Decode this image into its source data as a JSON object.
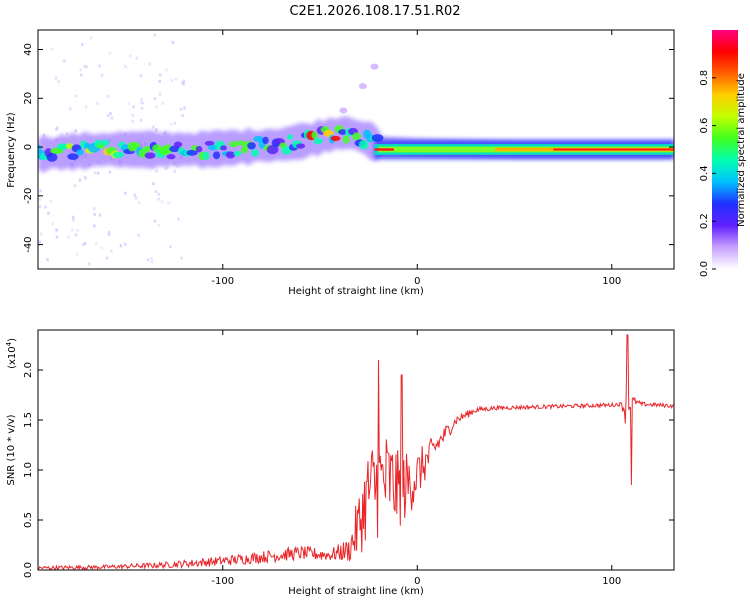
{
  "title": "C2E1.2026.108.17.51.R02",
  "chart_data": [
    {
      "type": "heatmap",
      "xlabel": "Height of straight line (km)",
      "ylabel": "Frequency (Hz)",
      "xlim": [
        -195,
        132
      ],
      "ylim": [
        -50,
        48
      ],
      "xticks": [
        -100,
        0,
        100
      ],
      "xtick_labels": [
        "-100",
        "0",
        "100"
      ],
      "yticks": [
        -40,
        -20,
        0,
        20,
        40
      ],
      "ytick_labels": [
        "-40",
        "-20",
        "0",
        "20",
        "40"
      ],
      "colorbar": {
        "label": "Normalized spectral amplitude",
        "range": [
          0,
          1
        ],
        "ticks": [
          0.0,
          0.2,
          0.4,
          0.6,
          0.8
        ],
        "tick_labels": [
          "0.0",
          "0.2",
          "0.4",
          "0.6",
          "0.8"
        ],
        "colors": [
          "#ffffff",
          "#c8a0ff",
          "#6020ff",
          "#2030ff",
          "#00c0ff",
          "#00ffb0",
          "#40ff20",
          "#c0ff00",
          "#ffd000",
          "#ff6000",
          "#ff0000",
          "#ff0080"
        ]
      },
      "band_center_hz": [
        {
          "x": -195,
          "f": -3
        },
        {
          "x": -180,
          "f": -2
        },
        {
          "x": -160,
          "f": -1
        },
        {
          "x": -130,
          "f": -1
        },
        {
          "x": -110,
          "f": -1
        },
        {
          "x": -90,
          "f": 0
        },
        {
          "x": -70,
          "f": 1
        },
        {
          "x": -55,
          "f": 3
        },
        {
          "x": -45,
          "f": 5
        },
        {
          "x": -35,
          "f": 6
        },
        {
          "x": -25,
          "f": 3
        },
        {
          "x": -20,
          "f": 1
        },
        {
          "x": 0,
          "f": 0
        },
        {
          "x": 50,
          "f": -1
        },
        {
          "x": 100,
          "f": -1
        },
        {
          "x": 132,
          "f": -1
        }
      ],
      "faint_tail": [
        {
          "x": -38,
          "f": 15
        },
        {
          "x": -28,
          "f": 25
        },
        {
          "x": -22,
          "f": 33
        }
      ]
    },
    {
      "type": "line",
      "xlabel": "Height of straight line (km)",
      "ylabel": "SNR (10 * v/v)",
      "y_scale_label": "(x10",
      "y_scale_exp": "4",
      "xlim": [
        -195,
        132
      ],
      "ylim": [
        0,
        2.4
      ],
      "xticks": [
        -100,
        0,
        100
      ],
      "xtick_labels": [
        "-100",
        "0",
        "100"
      ],
      "yticks": [
        0.0,
        0.5,
        1.0,
        1.5,
        2.0
      ],
      "ytick_labels": [
        "0.0",
        "0.5",
        "1.0",
        "1.5",
        "2.0"
      ],
      "series": [
        {
          "name": "SNR",
          "color": "#e8262a",
          "x": [
            -195,
            -160,
            -130,
            -100,
            -80,
            -60,
            -45,
            -35,
            -30,
            -25,
            -20,
            -15,
            -10,
            -5,
            0,
            10,
            20,
            30,
            40,
            60,
            80,
            100,
            105,
            108,
            110,
            115,
            132
          ],
          "y": [
            0.02,
            0.03,
            0.05,
            0.09,
            0.13,
            0.17,
            0.15,
            0.2,
            0.45,
            0.8,
            0.85,
            0.9,
            0.8,
            0.85,
            0.95,
            1.25,
            1.5,
            1.6,
            1.62,
            1.63,
            1.64,
            1.65,
            1.66,
            1.6,
            1.7,
            1.66,
            1.64
          ],
          "noise": [
            0.02,
            0.02,
            0.03,
            0.05,
            0.06,
            0.07,
            0.06,
            0.12,
            0.35,
            0.45,
            0.55,
            0.5,
            0.4,
            0.35,
            0.25,
            0.12,
            0.05,
            0.03,
            0.02,
            0.02,
            0.02,
            0.02,
            0.02,
            0.25,
            0.05,
            0.02,
            0.02
          ],
          "spikes": [
            {
              "x": -20,
              "y": 2.1
            },
            {
              "x": -8,
              "y": 1.95
            },
            {
              "x": 108,
              "y": 2.35
            },
            {
              "x": 110,
              "y": 0.85
            }
          ]
        }
      ]
    }
  ]
}
